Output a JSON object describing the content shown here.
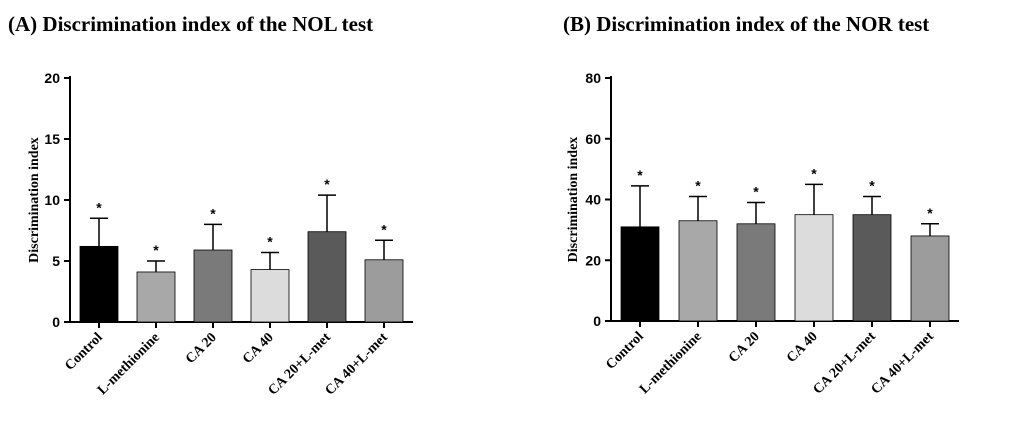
{
  "chart_data": [
    {
      "type": "bar",
      "title": "(A) Discrimination index of the NOL test",
      "ylabel": "Discrimination index",
      "xlabel": "",
      "categories": [
        "Control",
        "L-methionine",
        "CA 20",
        "CA 40",
        "CA 20+L-met",
        "CA 40+L-met"
      ],
      "values": [
        6.2,
        4.1,
        5.9,
        4.3,
        7.4,
        5.1
      ],
      "errors": [
        2.3,
        0.9,
        2.1,
        1.4,
        3.0,
        1.6
      ],
      "annotations": [
        "*",
        "*",
        "*",
        "*",
        "*",
        "*"
      ],
      "bar_colors": [
        "#000000",
        "#a8a8a8",
        "#7a7a7a",
        "#dcdcdc",
        "#5a5a5a",
        "#9c9c9c"
      ],
      "ylim": [
        0,
        20
      ],
      "yticks": [
        0,
        5,
        10,
        15,
        20
      ],
      "grid": false
    },
    {
      "type": "bar",
      "title": "(B) Discrimination index of the NOR test",
      "ylabel": "Discrimination index",
      "xlabel": "",
      "categories": [
        "Control",
        "L-methionine",
        "CA 20",
        "CA 40",
        "CA 20+L-met",
        "CA 40+L-met"
      ],
      "values": [
        31,
        33,
        32,
        35,
        35,
        28
      ],
      "errors": [
        13.5,
        8,
        7,
        10,
        6,
        4
      ],
      "annotations": [
        "*",
        "*",
        "*",
        "*",
        "*",
        "*"
      ],
      "bar_colors": [
        "#000000",
        "#a8a8a8",
        "#7a7a7a",
        "#dcdcdc",
        "#5a5a5a",
        "#9c9c9c"
      ],
      "ylim": [
        0,
        80
      ],
      "yticks": [
        0,
        20,
        40,
        60,
        80
      ],
      "grid": false
    }
  ]
}
